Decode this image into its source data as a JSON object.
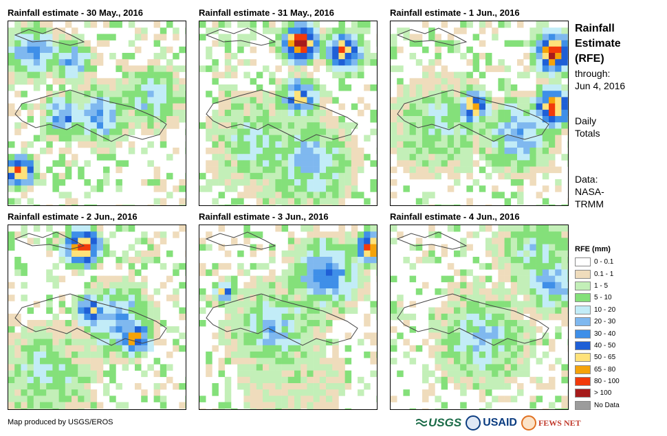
{
  "panels": [
    {
      "title": "Rainfall estimate - 30 May., 2016",
      "id": "may30"
    },
    {
      "title": "Rainfall estimate - 31 May., 2016",
      "id": "may31"
    },
    {
      "title": "Rainfall estimate - 1 Jun., 2016",
      "id": "jun1"
    },
    {
      "title": "Rainfall estimate - 2 Jun., 2016",
      "id": "jun2"
    },
    {
      "title": "Rainfall estimate - 3 Jun., 2016",
      "id": "jun3"
    },
    {
      "title": "Rainfall estimate - 4 Jun., 2016",
      "id": "jun4"
    }
  ],
  "side": {
    "title_line1": "Rainfall",
    "title_line2": "Estimate",
    "title_line3": "(RFE)",
    "through_label": "through:",
    "through_date": "Jun 4, 2016",
    "daily_line1": "Daily",
    "daily_line2": "Totals",
    "data_label": "Data:",
    "data_source_line1": "NASA-",
    "data_source_line2": "TRMM"
  },
  "legend": {
    "title": "RFE (mm)",
    "items": [
      {
        "label": "0 - 0.1",
        "color": "#ffffff"
      },
      {
        "label": "0.1 - 1",
        "color": "#efdcbc"
      },
      {
        "label": "1 - 5",
        "color": "#c3efb8"
      },
      {
        "label": "5 - 10",
        "color": "#84e07a"
      },
      {
        "label": "10 - 20",
        "color": "#c2ecf7"
      },
      {
        "label": "20 - 30",
        "color": "#7fb8ef"
      },
      {
        "label": "30 - 40",
        "color": "#3f8fe8"
      },
      {
        "label": "40 - 50",
        "color": "#1f5fd6"
      },
      {
        "label": "50 - 65",
        "color": "#ffe27a"
      },
      {
        "label": "65 - 80",
        "color": "#f5a30a"
      },
      {
        "label": "80 - 100",
        "color": "#f23a0a"
      },
      {
        "label": "> 100",
        "color": "#a61b1b"
      },
      {
        "label": "No Data",
        "color": "#9c9c9c"
      }
    ]
  },
  "credit": "Map produced by USGS/EROS",
  "logos": {
    "usgs": "USGS",
    "usaid": "USAID",
    "fews": "FEWS NET"
  }
}
